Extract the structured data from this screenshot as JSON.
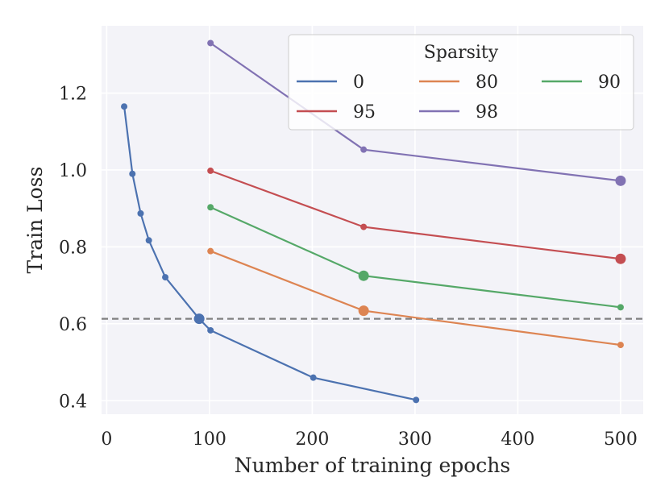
{
  "chart_data": {
    "type": "line",
    "title": "",
    "xlabel": "Number of training epochs",
    "ylabel": "Train Loss",
    "xlim": [
      -5,
      522
    ],
    "ylim": [
      0.365,
      1.375
    ],
    "xticks": [
      0,
      100,
      200,
      300,
      400,
      500
    ],
    "yticks": [
      0.4,
      0.6,
      0.8,
      1.0,
      1.2
    ],
    "xtick_labels": [
      "0",
      "100",
      "200",
      "300",
      "400",
      "500"
    ],
    "ytick_labels": [
      "0.4",
      "0.6",
      "0.8",
      "1.0",
      "1.2"
    ],
    "grid": true,
    "reference_line": {
      "y": 0.613,
      "style": "dashed",
      "color": "#808080"
    },
    "legend": {
      "title": "Sparsity",
      "placement": "top-right",
      "columns": 3
    },
    "series": [
      {
        "name": "0",
        "color": "#4c72b0",
        "x": [
          17,
          25,
          33,
          41,
          57,
          90,
          101,
          201,
          301
        ],
        "y": [
          1.165,
          0.99,
          0.887,
          0.817,
          0.721,
          0.613,
          0.583,
          0.46,
          0.402
        ],
        "highlight_index": 5
      },
      {
        "name": "80",
        "color": "#dd8452",
        "x": [
          101,
          250,
          500
        ],
        "y": [
          0.789,
          0.634,
          0.545
        ],
        "highlight_index": 1
      },
      {
        "name": "90",
        "color": "#55a868",
        "x": [
          101,
          250,
          500
        ],
        "y": [
          0.903,
          0.725,
          0.643
        ],
        "highlight_index": 1
      },
      {
        "name": "95",
        "color": "#c44e52",
        "x": [
          101,
          250,
          500
        ],
        "y": [
          0.998,
          0.852,
          0.769
        ],
        "highlight_index": 2
      },
      {
        "name": "98",
        "color": "#8172b3",
        "x": [
          101,
          250,
          500
        ],
        "y": [
          1.33,
          1.053,
          0.972
        ],
        "highlight_index": 2
      }
    ]
  }
}
